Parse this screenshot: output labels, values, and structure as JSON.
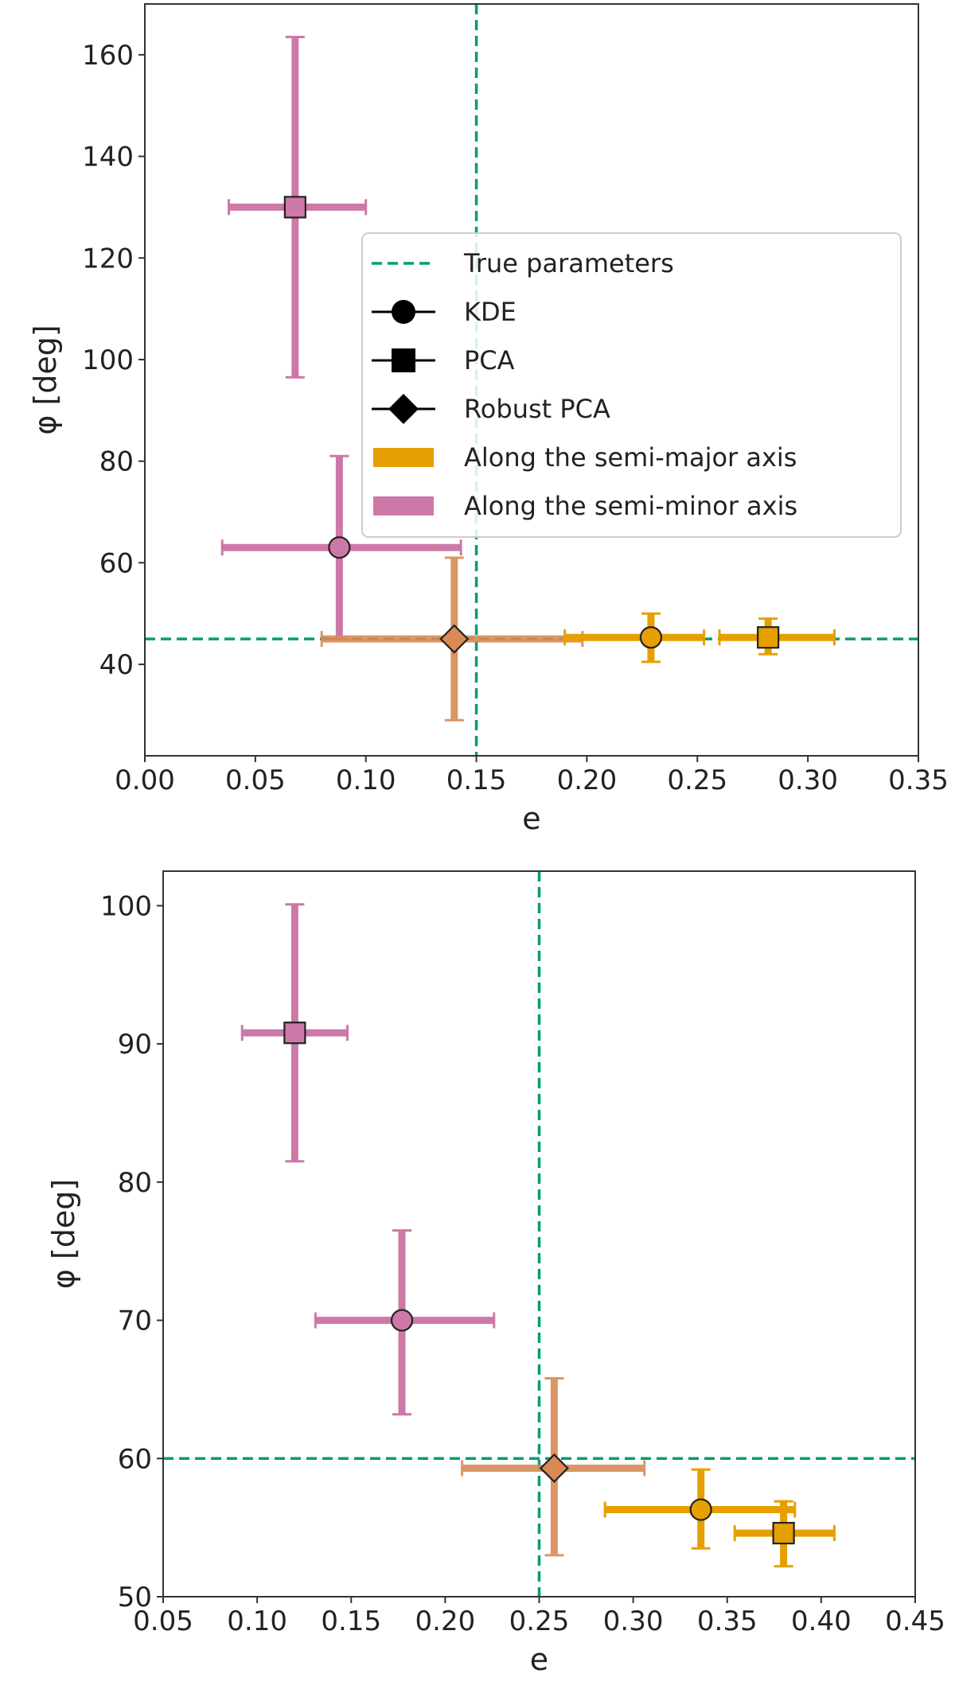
{
  "colors": {
    "semi_major": "#E69F00",
    "semi_minor": "#CC79A7",
    "robust_blend": "#D98A55",
    "true_params": "#009E73",
    "axis": "#333333"
  },
  "legend": {
    "items": [
      {
        "label": "True parameters",
        "kind": "dashed-line"
      },
      {
        "label": "KDE",
        "kind": "circle"
      },
      {
        "label": "PCA",
        "kind": "square"
      },
      {
        "label": "Robust PCA",
        "kind": "diamond"
      },
      {
        "label": "Along the semi-major axis",
        "kind": "patch-major"
      },
      {
        "label": "Along the semi-minor axis",
        "kind": "patch-minor"
      }
    ]
  },
  "chart_data": [
    {
      "type": "scatter",
      "xlabel": "e",
      "ylabel": "φ [deg]",
      "xlim": [
        0.0,
        0.35
      ],
      "ylim": [
        22,
        170
      ],
      "xticks": [
        "0.00",
        "0.05",
        "0.10",
        "0.15",
        "0.20",
        "0.25",
        "0.30",
        "0.35"
      ],
      "yticks": [
        "40",
        "60",
        "80",
        "100",
        "120",
        "140",
        "160"
      ],
      "true_parameters": {
        "e": 0.15,
        "phi": 45
      },
      "legend_position": "center-right",
      "points": [
        {
          "method": "PCA",
          "axis": "semi-minor",
          "marker": "square",
          "e": 0.068,
          "phi": 130,
          "e_err": [
            0.038,
            0.1
          ],
          "phi_err": [
            96.5,
            163.5
          ]
        },
        {
          "method": "KDE",
          "axis": "semi-minor",
          "marker": "circle",
          "e": 0.088,
          "phi": 63,
          "e_err": [
            0.035,
            0.143
          ],
          "phi_err": [
            45,
            81
          ]
        },
        {
          "method": "Robust PCA",
          "axis": "both",
          "marker": "diamond",
          "e": 0.14,
          "phi": 45,
          "e_err": [
            0.08,
            0.198
          ],
          "phi_err": [
            29,
            61
          ]
        },
        {
          "method": "KDE",
          "axis": "semi-major",
          "marker": "circle",
          "e": 0.229,
          "phi": 45.3,
          "e_err": [
            0.19,
            0.253
          ],
          "phi_err": [
            40.5,
            50
          ]
        },
        {
          "method": "PCA",
          "axis": "semi-major",
          "marker": "square",
          "e": 0.282,
          "phi": 45.3,
          "e_err": [
            0.26,
            0.312
          ],
          "phi_err": [
            42,
            49
          ]
        }
      ]
    },
    {
      "type": "scatter",
      "xlabel": "e",
      "ylabel": "φ [deg]",
      "xlim": [
        0.05,
        0.45
      ],
      "ylim": [
        50,
        102.5
      ],
      "xticks": [
        "0.05",
        "0.10",
        "0.15",
        "0.20",
        "0.25",
        "0.30",
        "0.35",
        "0.40",
        "0.45"
      ],
      "yticks": [
        "50",
        "60",
        "70",
        "80",
        "90",
        "100"
      ],
      "true_parameters": {
        "e": 0.25,
        "phi": 60
      },
      "points": [
        {
          "method": "PCA",
          "axis": "semi-minor",
          "marker": "square",
          "e": 0.12,
          "phi": 90.8,
          "e_err": [
            0.092,
            0.148
          ],
          "phi_err": [
            81.5,
            100.1
          ]
        },
        {
          "method": "KDE",
          "axis": "semi-minor",
          "marker": "circle",
          "e": 0.177,
          "phi": 70,
          "e_err": [
            0.131,
            0.226
          ],
          "phi_err": [
            63.2,
            76.5
          ]
        },
        {
          "method": "Robust PCA",
          "axis": "both",
          "marker": "diamond",
          "e": 0.258,
          "phi": 59.3,
          "e_err": [
            0.209,
            0.306
          ],
          "phi_err": [
            53,
            65.8
          ]
        },
        {
          "method": "KDE",
          "axis": "semi-major",
          "marker": "circle",
          "e": 0.336,
          "phi": 56.3,
          "e_err": [
            0.285,
            0.386
          ],
          "phi_err": [
            53.5,
            59.2
          ]
        },
        {
          "method": "PCA",
          "axis": "semi-major",
          "marker": "square",
          "e": 0.38,
          "phi": 54.6,
          "e_err": [
            0.354,
            0.407
          ],
          "phi_err": [
            52.2,
            56.9
          ]
        }
      ]
    }
  ]
}
